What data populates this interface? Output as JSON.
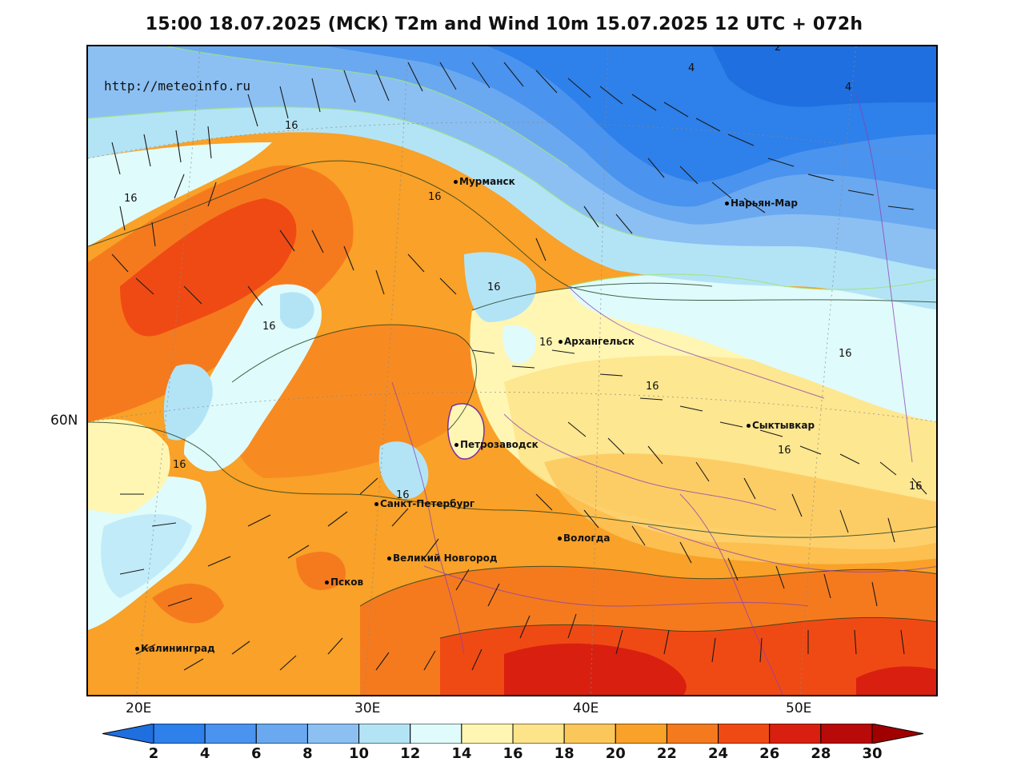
{
  "title": "15:00 18.07.2025 (MCK) T2m and Wind 10m 15.07.2025 12 UTC + 072h",
  "watermark": "http://meteoinfo.ru",
  "lat_labels": [
    "60N"
  ],
  "lon_labels": [
    "20E",
    "30E",
    "40E",
    "50E"
  ],
  "cities": {
    "murmansk": "Мурманск",
    "naryan_mar": "Нарьян-Мар",
    "arkhangelsk": "Архангельск",
    "syktyvkar": "Сыктывкар",
    "petrozavodsk": "Петрозаводск",
    "spb": "Санкт-Петербург",
    "vologda": "Вологда",
    "novgorod": "Великий Новгород",
    "pskov": "Псков",
    "kaliningrad": "Калининград"
  },
  "isotherm_labels": [
    "16",
    "16",
    "16",
    "16",
    "16",
    "16",
    "16",
    "16",
    "16",
    "16",
    "16",
    "16",
    "16",
    "4",
    "4",
    "2"
  ],
  "colorbar": {
    "labels": [
      "2",
      "4",
      "6",
      "8",
      "10",
      "12",
      "14",
      "16",
      "18",
      "20",
      "22",
      "24",
      "26",
      "28",
      "30"
    ],
    "colors": [
      "#1f6fe0",
      "#2e80ea",
      "#4a93ee",
      "#6aa9f0",
      "#8cc0f3",
      "#b3e4f6",
      "#e0fbfb",
      "#fff6b3",
      "#fde48a",
      "#fcc75a",
      "#f9a128",
      "#f57a1e",
      "#f04a14",
      "#d92010",
      "#b80a08",
      "#a00000"
    ]
  }
}
